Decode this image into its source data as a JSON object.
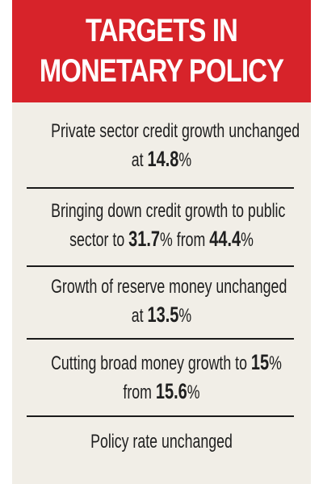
{
  "header": {
    "line1": "TARGETS IN",
    "line2": "MONETARY POLICY"
  },
  "items": [
    {
      "line1": "Private sector credit growth unchanged",
      "line2_pre": "at ",
      "line2_bold": "14.8",
      "line2_post": "%"
    },
    {
      "line1": "Bringing down credit growth to public",
      "line2_pre": "sector to ",
      "line2_bold1": "31.7",
      "line2_mid": "% from ",
      "line2_bold2": "44.4",
      "line2_post": "%"
    },
    {
      "line1": "Growth of reserve money unchanged",
      "line2_pre": "at ",
      "line2_bold": "13.5",
      "line2_post": "%"
    },
    {
      "line1_pre": "Cutting broad money growth to ",
      "line1_bold": "15",
      "line1_post": "%",
      "line2_pre": "from ",
      "line2_bold": "15.6",
      "line2_post": "%"
    },
    {
      "line1": "Policy rate unchanged"
    }
  ],
  "colors": {
    "header_bg": "#d7232a",
    "card_bg": "#f1eee7",
    "text": "#1f1f1f",
    "divider": "#1a1a1a"
  }
}
